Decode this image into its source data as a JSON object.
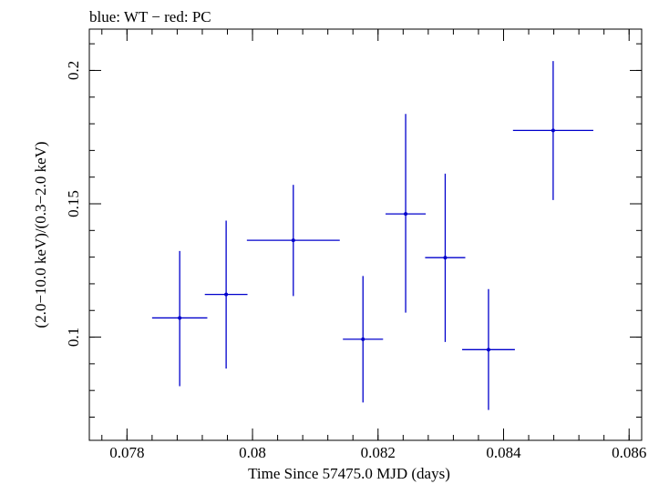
{
  "chart_data": {
    "type": "scatter",
    "title": "blue: WT − red: PC",
    "xlabel": "Time Since 57475.0 MJD (days)",
    "ylabel": "(2.0−10.0 keV)/(0.3−2.0 keV)",
    "xlim": [
      0.0774,
      0.0862
    ],
    "ylim": [
      0.0613,
      0.2155
    ],
    "x_ticks": [
      {
        "value": 0.078,
        "label": "0.078"
      },
      {
        "value": 0.08,
        "label": "0.08"
      },
      {
        "value": 0.082,
        "label": "0.082"
      },
      {
        "value": 0.084,
        "label": "0.084"
      },
      {
        "value": 0.086,
        "label": "0.086"
      }
    ],
    "y_ticks": [
      {
        "value": 0.1,
        "label": "0.1"
      },
      {
        "value": 0.15,
        "label": "0.15"
      },
      {
        "value": 0.2,
        "label": "0.2"
      }
    ],
    "x_minor_step": 0.0004,
    "y_minor_step": 0.01,
    "grid": false,
    "color": "#0000cc",
    "series": [
      {
        "points": [
          {
            "x": 0.07884,
            "y": 0.1072,
            "xlo": 0.0784,
            "xhi": 0.07928,
            "ylo": 0.0816,
            "yhi": 0.1323
          },
          {
            "x": 0.07958,
            "y": 0.116,
            "xlo": 0.07924,
            "xhi": 0.07992,
            "ylo": 0.0882,
            "yhi": 0.1437
          },
          {
            "x": 0.08065,
            "y": 0.1363,
            "xlo": 0.07991,
            "xhi": 0.08139,
            "ylo": 0.1154,
            "yhi": 0.1571
          },
          {
            "x": 0.08176,
            "y": 0.0992,
            "xlo": 0.08144,
            "xhi": 0.08208,
            "ylo": 0.0755,
            "yhi": 0.1229
          },
          {
            "x": 0.08244,
            "y": 0.1462,
            "xlo": 0.08212,
            "xhi": 0.08276,
            "ylo": 0.1092,
            "yhi": 0.1837
          },
          {
            "x": 0.08307,
            "y": 0.1298,
            "xlo": 0.08275,
            "xhi": 0.08339,
            "ylo": 0.0982,
            "yhi": 0.1613
          },
          {
            "x": 0.08376,
            "y": 0.0953,
            "xlo": 0.08334,
            "xhi": 0.08418,
            "ylo": 0.0727,
            "yhi": 0.118
          },
          {
            "x": 0.08479,
            "y": 0.1775,
            "xlo": 0.08415,
            "xhi": 0.08543,
            "ylo": 0.1514,
            "yhi": 0.2035
          }
        ]
      }
    ]
  }
}
